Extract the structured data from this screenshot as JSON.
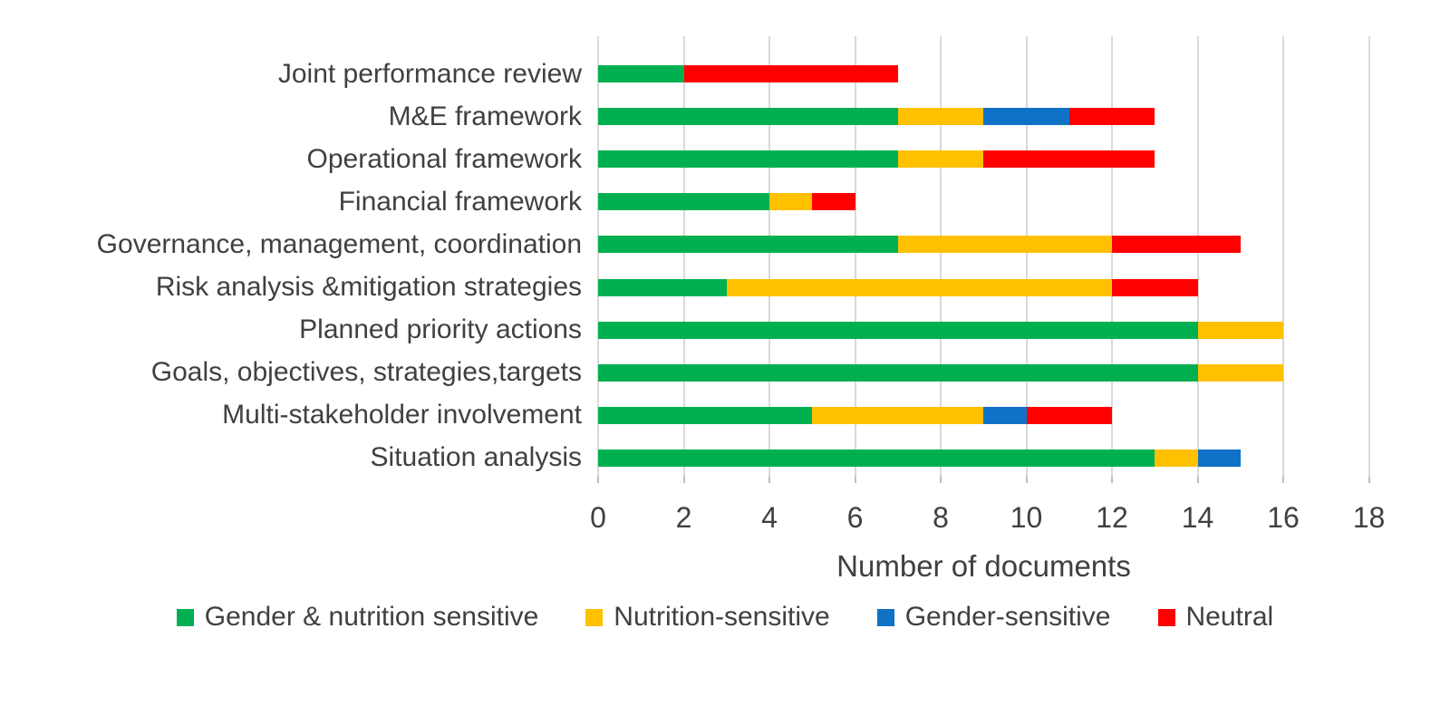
{
  "chart_data": {
    "type": "bar",
    "orientation": "horizontal-stacked",
    "xlabel": "Number of documents",
    "xlim": [
      0,
      18
    ],
    "xticks": [
      0,
      2,
      4,
      6,
      8,
      10,
      12,
      14,
      16,
      18
    ],
    "grid": "vertical-gridlines",
    "legend_position": "bottom",
    "categories": [
      "Joint performance review",
      "M&E framework",
      "Operational framework",
      "Financial framework",
      "Governance, management, coordination",
      "Risk analysis &mitigation strategies",
      "Planned priority actions",
      "Goals, objectives, strategies,targets",
      "Multi-stakeholder involvement",
      "Situation analysis"
    ],
    "series": [
      {
        "name": "Gender & nutrition sensitive",
        "color": "#00B050",
        "values": [
          2,
          7,
          7,
          4,
          7,
          3,
          14,
          14,
          5,
          13
        ]
      },
      {
        "name": "Nutrition-sensitive",
        "color": "#FFC000",
        "values": [
          0,
          2,
          2,
          1,
          5,
          9,
          2,
          2,
          4,
          1
        ]
      },
      {
        "name": "Gender-sensitive",
        "color": "#0F72C6",
        "values": [
          0,
          2,
          0,
          0,
          0,
          0,
          0,
          0,
          1,
          1
        ]
      },
      {
        "name": "Neutral",
        "color": "#FF0000",
        "values": [
          5,
          2,
          4,
          1,
          3,
          2,
          0,
          0,
          2,
          0
        ]
      }
    ],
    "totals": [
      7,
      13,
      13,
      6,
      15,
      14,
      16,
      16,
      12,
      15
    ]
  },
  "colors": {
    "gridline": "#d9d9d9",
    "text": "#404040",
    "background": "#ffffff"
  }
}
